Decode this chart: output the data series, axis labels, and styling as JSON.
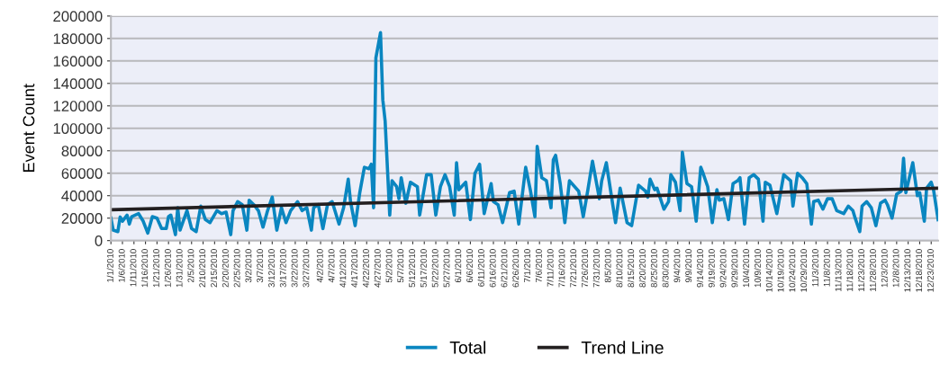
{
  "chart_data": {
    "type": "line",
    "ylabel": "Event Count",
    "xlim": [
      "2010-01-01",
      "2010-12-26"
    ],
    "ylim": [
      0,
      200000
    ],
    "yticks": [
      0,
      20000,
      40000,
      60000,
      80000,
      100000,
      120000,
      140000,
      160000,
      180000,
      200000
    ],
    "xticks": [
      {
        "value": "2010-01-01",
        "label": "1/1/2010"
      },
      {
        "value": "2010-01-06",
        "label": "1/6/2010"
      },
      {
        "value": "2010-01-11",
        "label": "1/11/2010"
      },
      {
        "value": "2010-01-16",
        "label": "1/16/2010"
      },
      {
        "value": "2010-01-21",
        "label": "1/21/2010"
      },
      {
        "value": "2010-01-26",
        "label": "1/26/2010"
      },
      {
        "value": "2010-01-31",
        "label": "1/31/2010"
      },
      {
        "value": "2010-02-05",
        "label": "2/5/2010"
      },
      {
        "value": "2010-02-10",
        "label": "2/10/2010"
      },
      {
        "value": "2010-02-15",
        "label": "2/15/2010"
      },
      {
        "value": "2010-02-20",
        "label": "2/20/2010"
      },
      {
        "value": "2010-02-25",
        "label": "2/25/2010"
      },
      {
        "value": "2010-03-02",
        "label": "3/2/2010"
      },
      {
        "value": "2010-03-07",
        "label": "3/7/2010"
      },
      {
        "value": "2010-03-12",
        "label": "3/12/2010"
      },
      {
        "value": "2010-03-17",
        "label": "3/17/2010"
      },
      {
        "value": "2010-03-22",
        "label": "3/22/2010"
      },
      {
        "value": "2010-03-27",
        "label": "3/27/2010"
      },
      {
        "value": "2010-04-02",
        "label": "4/2/2010"
      },
      {
        "value": "2010-04-07",
        "label": "4/7/2010"
      },
      {
        "value": "2010-04-12",
        "label": "4/12/2010"
      },
      {
        "value": "2010-04-17",
        "label": "4/17/2010"
      },
      {
        "value": "2010-04-22",
        "label": "4/22/2010"
      },
      {
        "value": "2010-04-27",
        "label": "4/27/2010"
      },
      {
        "value": "2010-05-02",
        "label": "5/2/2010"
      },
      {
        "value": "2010-05-07",
        "label": "5/7/2010"
      },
      {
        "value": "2010-05-12",
        "label": "5/12/2010"
      },
      {
        "value": "2010-05-17",
        "label": "5/17/2010"
      },
      {
        "value": "2010-05-22",
        "label": "5/22/2010"
      },
      {
        "value": "2010-05-27",
        "label": "5/27/2010"
      },
      {
        "value": "2010-06-01",
        "label": "6/1/2010"
      },
      {
        "value": "2010-06-06",
        "label": "6/6/2010"
      },
      {
        "value": "2010-06-11",
        "label": "6/11/2010"
      },
      {
        "value": "2010-06-16",
        "label": "6/16/2010"
      },
      {
        "value": "2010-06-21",
        "label": "6/21/2010"
      },
      {
        "value": "2010-06-26",
        "label": "6/26/2010"
      },
      {
        "value": "2010-07-01",
        "label": "7/1/2010"
      },
      {
        "value": "2010-07-06",
        "label": "7/6/2010"
      },
      {
        "value": "2010-07-11",
        "label": "7/11/2010"
      },
      {
        "value": "2010-07-16",
        "label": "7/16/2010"
      },
      {
        "value": "2010-07-21",
        "label": "7/21/2010"
      },
      {
        "value": "2010-07-26",
        "label": "7/26/2010"
      },
      {
        "value": "2010-07-31",
        "label": "7/31/2010"
      },
      {
        "value": "2010-08-05",
        "label": "8/5/2010"
      },
      {
        "value": "2010-08-10",
        "label": "8/10/2010"
      },
      {
        "value": "2010-08-15",
        "label": "8/15/2010"
      },
      {
        "value": "2010-08-20",
        "label": "8/20/2010"
      },
      {
        "value": "2010-08-25",
        "label": "8/25/2010"
      },
      {
        "value": "2010-08-30",
        "label": "8/30/2010"
      },
      {
        "value": "2010-09-04",
        "label": "9/4/2010"
      },
      {
        "value": "2010-09-09",
        "label": "9/9/2010"
      },
      {
        "value": "2010-09-14",
        "label": "9/14/2010"
      },
      {
        "value": "2010-09-19",
        "label": "9/19/2010"
      },
      {
        "value": "2010-09-24",
        "label": "9/24/2010"
      },
      {
        "value": "2010-09-29",
        "label": "9/29/2010"
      },
      {
        "value": "2010-10-04",
        "label": "10/4/2010"
      },
      {
        "value": "2010-10-09",
        "label": "10/9/2010"
      },
      {
        "value": "2010-10-14",
        "label": "10/14/2010"
      },
      {
        "value": "2010-10-19",
        "label": "10/19/2010"
      },
      {
        "value": "2010-10-24",
        "label": "10/24/2010"
      },
      {
        "value": "2010-10-29",
        "label": "10/29/2010"
      },
      {
        "value": "2010-11-03",
        "label": "11/3/2010"
      },
      {
        "value": "2010-11-08",
        "label": "11/8/2010"
      },
      {
        "value": "2010-11-13",
        "label": "11/13/2010"
      },
      {
        "value": "2010-11-18",
        "label": "11/18/2010"
      },
      {
        "value": "2010-11-23",
        "label": "11/23/2010"
      },
      {
        "value": "2010-11-28",
        "label": "11/28/2010"
      },
      {
        "value": "2010-12-03",
        "label": "12/3/2010"
      },
      {
        "value": "2010-12-08",
        "label": "12/8/2010"
      },
      {
        "value": "2010-12-13",
        "label": "12/13/2010"
      },
      {
        "value": "2010-12-18",
        "label": "12/18/2010"
      },
      {
        "value": "2010-12-23",
        "label": "12/23/2010"
      }
    ],
    "grid": "y",
    "legend": "bottom",
    "series": [
      {
        "name": "Total",
        "color": "#0a86c0",
        "x": [
          "2010-01-01",
          "2010-01-02",
          "2010-01-04",
          "2010-01-05",
          "2010-01-06",
          "2010-01-08",
          "2010-01-09",
          "2010-01-10",
          "2010-01-13",
          "2010-01-15",
          "2010-01-17",
          "2010-01-19",
          "2010-01-21",
          "2010-01-23",
          "2010-01-25",
          "2010-01-26",
          "2010-01-27",
          "2010-01-29",
          "2010-01-30",
          "2010-01-31",
          "2010-02-03",
          "2010-02-05",
          "2010-02-07",
          "2010-02-09",
          "2010-02-11",
          "2010-02-13",
          "2010-02-16",
          "2010-02-18",
          "2010-02-20",
          "2010-02-22",
          "2010-02-23",
          "2010-02-25",
          "2010-02-27",
          "2010-03-01",
          "2010-03-02",
          "2010-03-04",
          "2010-03-06",
          "2010-03-08",
          "2010-03-10",
          "2010-03-12",
          "2010-03-14",
          "2010-03-16",
          "2010-03-18",
          "2010-03-20",
          "2010-03-23",
          "2010-03-25",
          "2010-03-27",
          "2010-03-29",
          "2010-03-30",
          "2010-04-01",
          "2010-04-03",
          "2010-04-05",
          "2010-04-07",
          "2010-04-10",
          "2010-04-12",
          "2010-04-14",
          "2010-04-15",
          "2010-04-17",
          "2010-04-19",
          "2010-04-21",
          "2010-04-23",
          "2010-04-24",
          "2010-04-25",
          "2010-04-26",
          "2010-04-28",
          "2010-04-29",
          "2010-04-30",
          "2010-05-02",
          "2010-05-03",
          "2010-05-05",
          "2010-05-06",
          "2010-05-07",
          "2010-05-09",
          "2010-05-11",
          "2010-05-14",
          "2010-05-15",
          "2010-05-18",
          "2010-05-20",
          "2010-05-22",
          "2010-05-24",
          "2010-05-26",
          "2010-05-28",
          "2010-05-30",
          "2010-05-31",
          "2010-06-01",
          "2010-06-04",
          "2010-06-06",
          "2010-06-08",
          "2010-06-10",
          "2010-06-12",
          "2010-06-15",
          "2010-06-16",
          "2010-06-18",
          "2010-06-20",
          "2010-06-23",
          "2010-06-25",
          "2010-06-27",
          "2010-06-30",
          "2010-07-02",
          "2010-07-04",
          "2010-07-05",
          "2010-07-07",
          "2010-07-09",
          "2010-07-11",
          "2010-07-12",
          "2010-07-13",
          "2010-07-15",
          "2010-07-17",
          "2010-07-19",
          "2010-07-23",
          "2010-07-25",
          "2010-07-27",
          "2010-07-29",
          "2010-08-01",
          "2010-08-02",
          "2010-08-04",
          "2010-08-08",
          "2010-08-10",
          "2010-08-13",
          "2010-08-15",
          "2010-08-18",
          "2010-08-21",
          "2010-08-22",
          "2010-08-23",
          "2010-08-25",
          "2010-08-26",
          "2010-08-29",
          "2010-08-31",
          "2010-09-01",
          "2010-09-03",
          "2010-09-05",
          "2010-09-06",
          "2010-09-08",
          "2010-09-10",
          "2010-09-12",
          "2010-09-14",
          "2010-09-15",
          "2010-09-17",
          "2010-09-19",
          "2010-09-21",
          "2010-09-22",
          "2010-09-24",
          "2010-09-26",
          "2010-09-28",
          "2010-09-30",
          "2010-10-01",
          "2010-10-03",
          "2010-10-05",
          "2010-10-07",
          "2010-10-09",
          "2010-10-11",
          "2010-10-12",
          "2010-10-14",
          "2010-10-17",
          "2010-10-20",
          "2010-10-23",
          "2010-10-24",
          "2010-10-26",
          "2010-10-28",
          "2010-10-30",
          "2010-11-01",
          "2010-11-02",
          "2010-11-04",
          "2010-11-06",
          "2010-11-08",
          "2010-11-10",
          "2010-11-12",
          "2010-11-15",
          "2010-11-17",
          "2010-11-19",
          "2010-11-20",
          "2010-11-22",
          "2010-11-23",
          "2010-11-25",
          "2010-11-27",
          "2010-11-29",
          "2010-12-01",
          "2010-12-03",
          "2010-12-04",
          "2010-12-06",
          "2010-12-08",
          "2010-12-10",
          "2010-12-11",
          "2010-12-12",
          "2010-12-15",
          "2010-12-17",
          "2010-12-18",
          "2010-12-20",
          "2010-12-21",
          "2010-12-23",
          "2010-12-24",
          "2010-12-26"
        ],
        "values": [
          20000,
          9300,
          8000,
          21000,
          17300,
          22700,
          14700,
          21300,
          24000,
          17300,
          6700,
          21300,
          20000,
          10700,
          10700,
          21300,
          22700,
          5300,
          29300,
          9300,
          26700,
          10700,
          8000,
          30700,
          18700,
          16000,
          26700,
          24000,
          25300,
          5300,
          26700,
          34700,
          32000,
          9300,
          36000,
          32000,
          26700,
          12000,
          26700,
          38700,
          9300,
          29300,
          16000,
          26700,
          34700,
          26700,
          29300,
          9300,
          29300,
          32000,
          10700,
          32000,
          34700,
          14700,
          29300,
          54700,
          34700,
          13300,
          42700,
          65300,
          64000,
          68000,
          29300,
          162700,
          185300,
          125300,
          106700,
          22700,
          53300,
          48000,
          37300,
          56000,
          33300,
          52000,
          48000,
          22700,
          58700,
          58700,
          22700,
          48000,
          58700,
          48000,
          22700,
          69300,
          45300,
          52000,
          18700,
          60000,
          68000,
          24000,
          50700,
          34700,
          32000,
          16000,
          42700,
          44000,
          14700,
          65300,
          45300,
          21300,
          84000,
          56000,
          53300,
          29300,
          72000,
          76000,
          50700,
          16000,
          53300,
          44000,
          21300,
          45300,
          70700,
          37300,
          53300,
          69300,
          16000,
          46700,
          16000,
          13300,
          49300,
          44000,
          38700,
          54700,
          45300,
          46700,
          28000,
          34700,
          58700,
          52000,
          26700,
          78700,
          50700,
          48000,
          17300,
          65300,
          60000,
          48000,
          16000,
          45300,
          36000,
          37300,
          18700,
          50700,
          53300,
          56000,
          14700,
          56000,
          58700,
          54700,
          17300,
          52000,
          49300,
          24000,
          58700,
          53300,
          30700,
          60000,
          56000,
          50700,
          14700,
          34700,
          36000,
          28000,
          37300,
          37300,
          26700,
          24000,
          30700,
          26700,
          20000,
          8000,
          30700,
          34700,
          29300,
          13300,
          33300,
          36000,
          32000,
          20000,
          41300,
          44000,
          73300,
          42700,
          69300,
          40000,
          42700,
          17300,
          46700,
          52000,
          45300,
          18700
        ]
      },
      {
        "name": "Trend Line",
        "color": "#231f20",
        "x": [
          "2010-01-01",
          "2010-12-26"
        ],
        "values": [
          27500,
          46700
        ]
      }
    ]
  }
}
